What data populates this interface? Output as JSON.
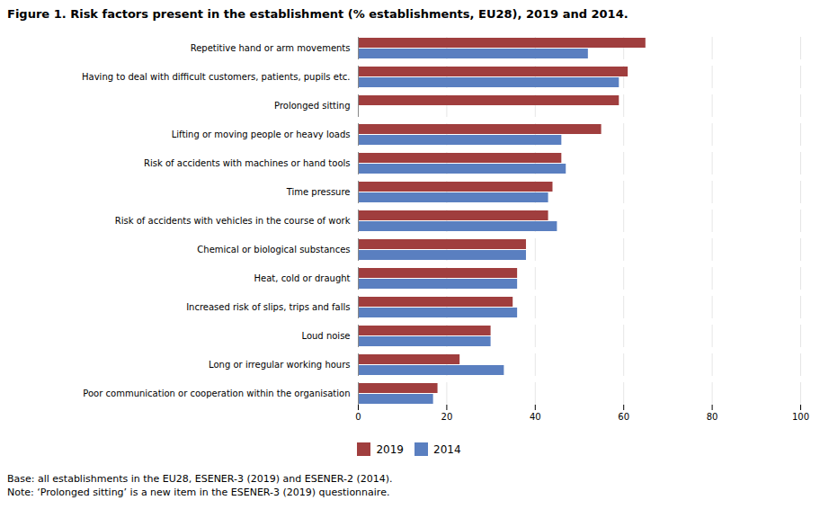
{
  "chart_data": {
    "type": "bar",
    "orientation": "horizontal",
    "title": "Figure 1. Risk factors present in the establishment (% establishments, EU28), 2019 and 2014.",
    "categories": [
      "Repetitive hand or arm movements",
      "Having to deal with difficult customers, patients, pupils etc.",
      "Prolonged sitting",
      "Lifting or moving people or heavy loads",
      "Risk of accidents with machines or hand tools",
      "Time pressure",
      "Risk of accidents with vehicles in the course of work",
      "Chemical or biological substances",
      "Heat, cold or draught",
      "Increased risk of slips, trips and falls",
      "Loud noise",
      "Long or irregular working hours",
      "Poor communication or cooperation within the organisation"
    ],
    "series": [
      {
        "name": "2019",
        "color": "#a03e3e",
        "values": [
          65,
          61,
          59,
          55,
          46,
          44,
          43,
          38,
          36,
          35,
          30,
          23,
          18
        ]
      },
      {
        "name": "2014",
        "color": "#5a7fc0",
        "values": [
          52,
          59,
          null,
          46,
          47,
          43,
          45,
          38,
          36,
          36,
          30,
          33,
          17
        ]
      }
    ],
    "xlim": [
      0,
      100
    ],
    "xticks": [
      0,
      20,
      40,
      60,
      80,
      100
    ],
    "grid": true,
    "legend": "bottom",
    "annotations": [
      "Base: all establishments in the EU28, ESENER-3 (2019) and ESENER-2 (2014).",
      "Note: ‘Prolonged sitting’ is a new item in the ESENER-3 (2019) questionnaire."
    ]
  }
}
